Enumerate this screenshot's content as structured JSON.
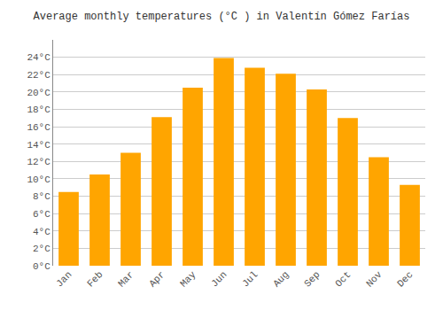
{
  "chart_data": {
    "type": "bar",
    "title": "Average monthly temperatures (°C ) in Valentín Gómez Farías",
    "categories": [
      "Jan",
      "Feb",
      "Mar",
      "Apr",
      "May",
      "Jun",
      "Jul",
      "Aug",
      "Sep",
      "Oct",
      "Nov",
      "Dec"
    ],
    "values": [
      8.5,
      10.5,
      13.0,
      17.1,
      20.5,
      23.9,
      22.8,
      22.1,
      20.3,
      17.0,
      12.5,
      9.3
    ],
    "color": "#FFA500",
    "ylim": [
      0,
      26
    ],
    "yticks": [
      {
        "value": 0,
        "label": "0°C"
      },
      {
        "value": 2,
        "label": "2°C"
      },
      {
        "value": 4,
        "label": "4°C"
      },
      {
        "value": 6,
        "label": "6°C"
      },
      {
        "value": 8,
        "label": "8°C"
      },
      {
        "value": 10,
        "label": "10°C"
      },
      {
        "value": 12,
        "label": "12°C"
      },
      {
        "value": 14,
        "label": "14°C"
      },
      {
        "value": 16,
        "label": "16°C"
      },
      {
        "value": 18,
        "label": "18°C"
      },
      {
        "value": 20,
        "label": "20°C"
      },
      {
        "value": 22,
        "label": "22°C"
      },
      {
        "value": 24,
        "label": "24°C"
      }
    ],
    "grid": true
  }
}
